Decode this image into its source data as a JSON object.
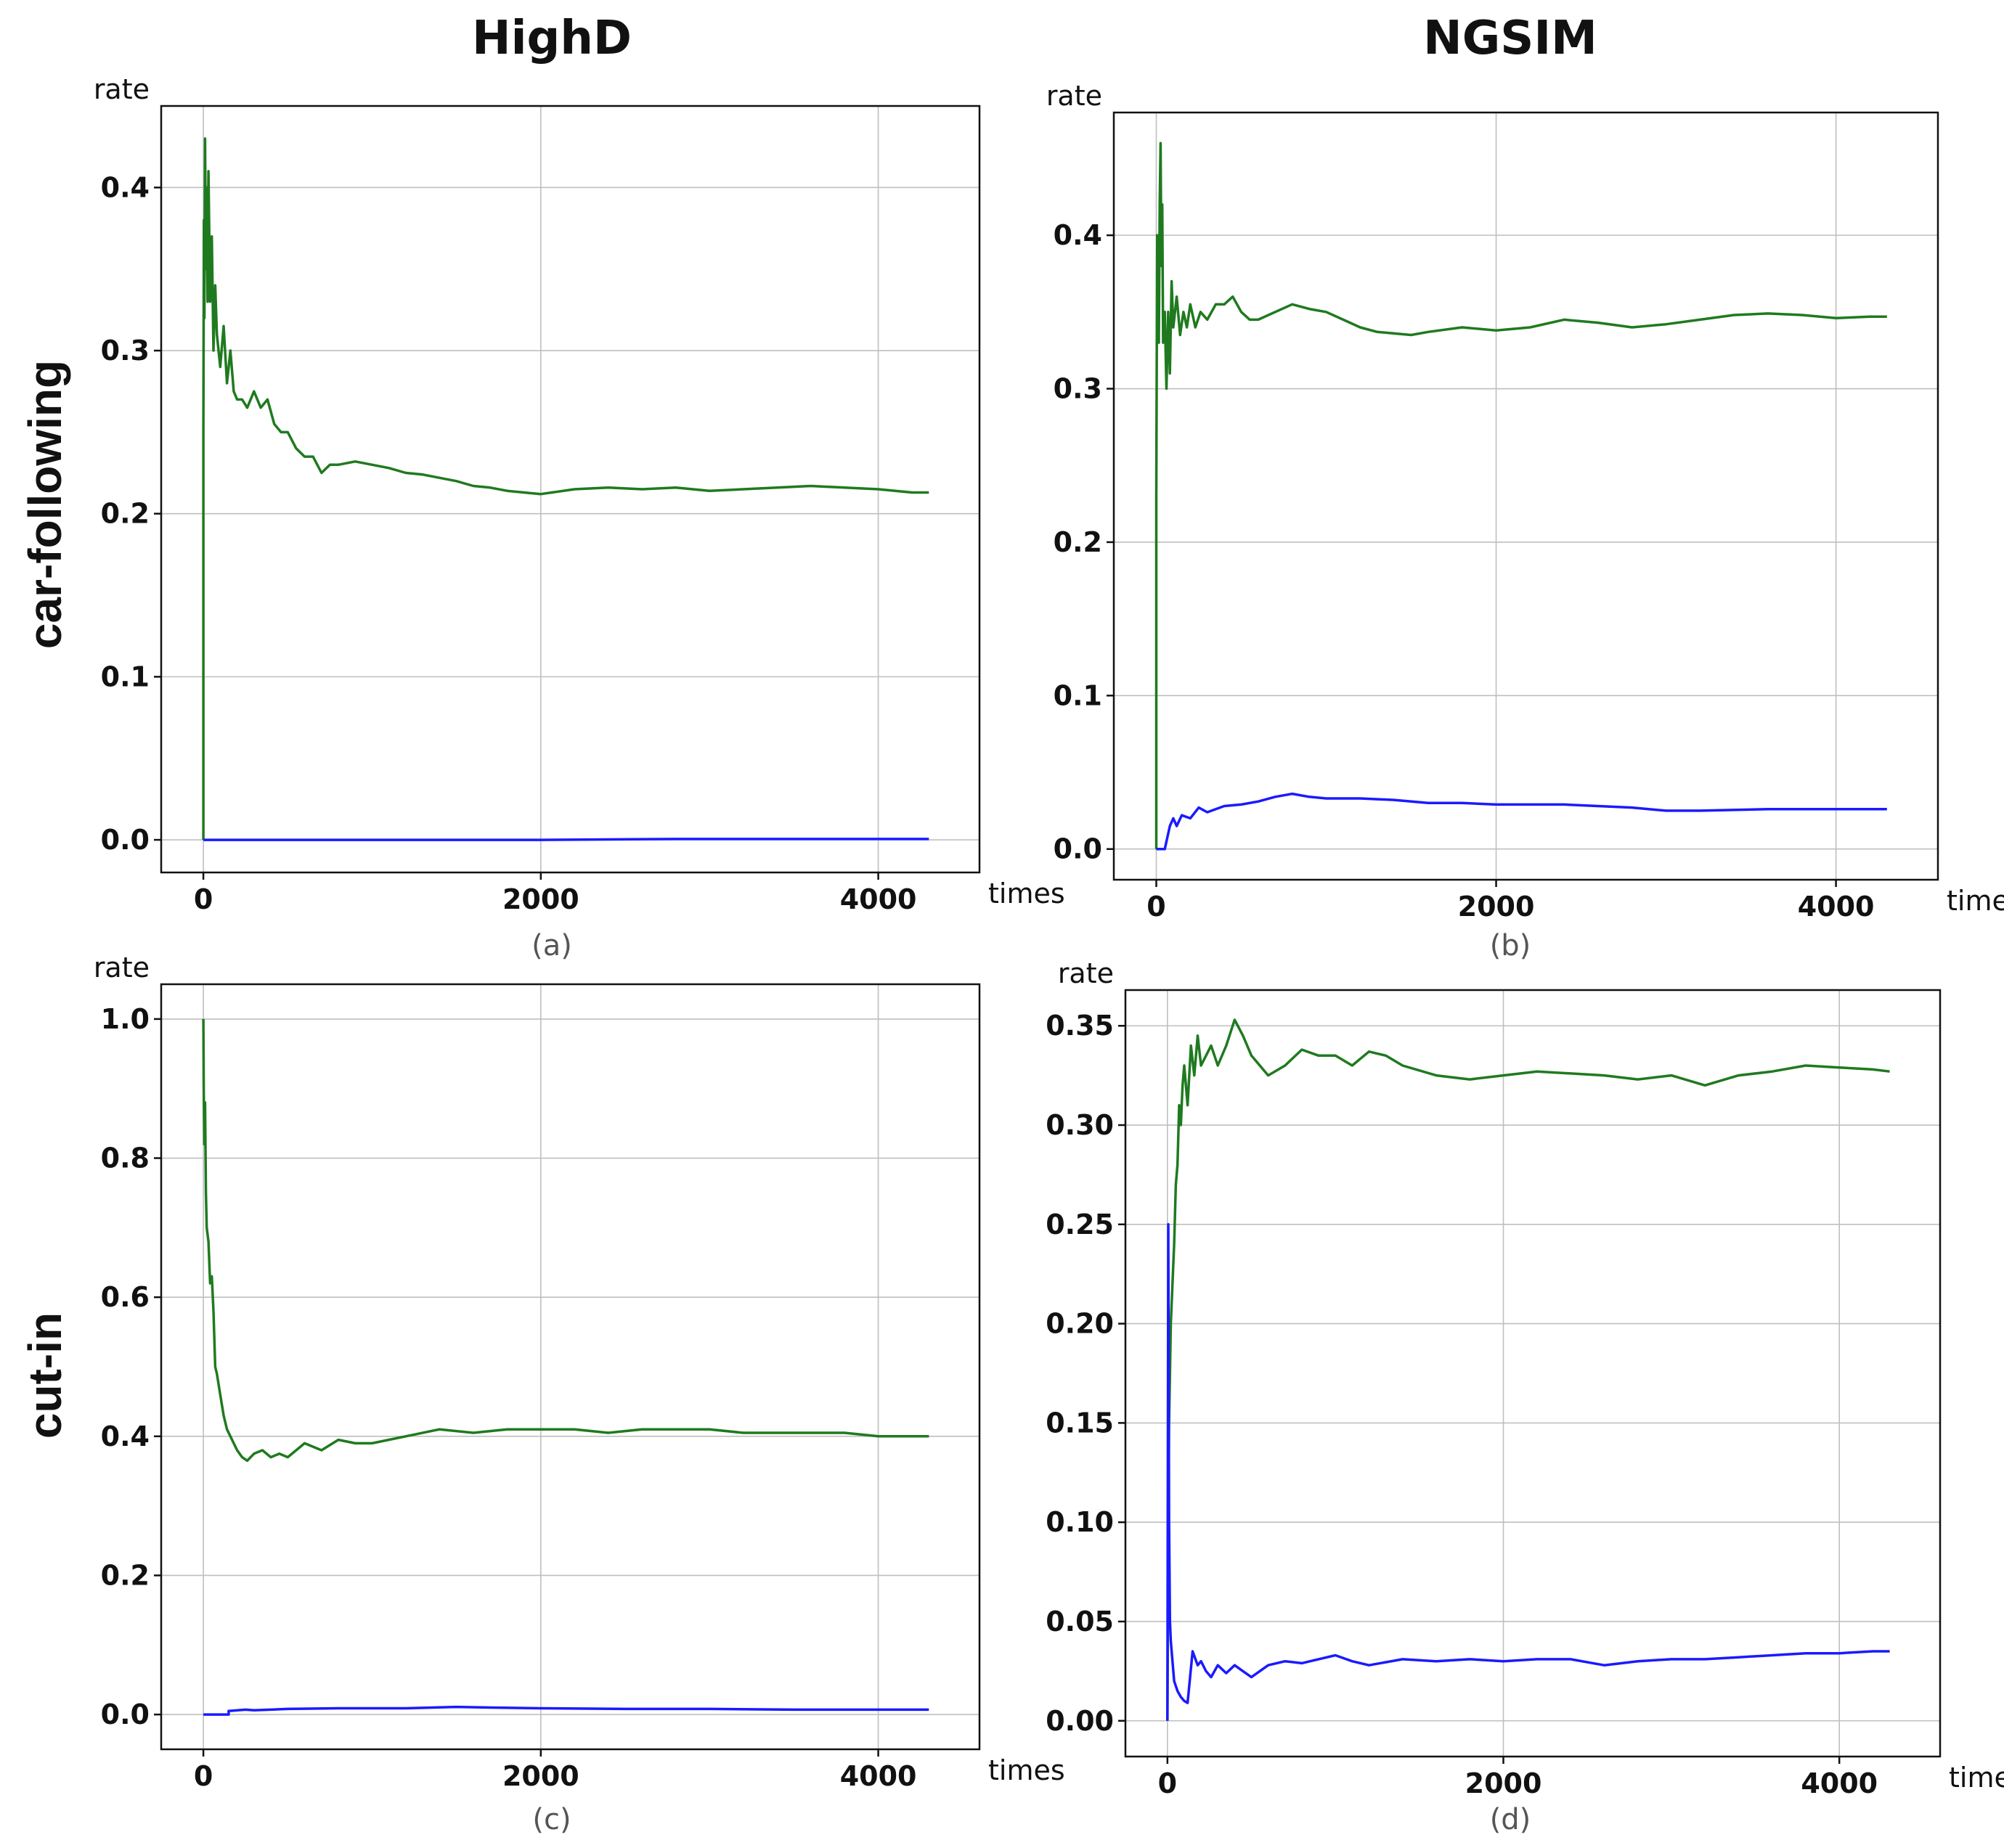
{
  "column_titles": [
    "HighD",
    "NGSIM"
  ],
  "row_titles": [
    "car-following",
    "cut-in"
  ],
  "colors": {
    "green_series": "#1f7a1f",
    "blue_series": "#1a1aff"
  },
  "chart_data": [
    {
      "id": "a",
      "type": "line",
      "caption": "(a)",
      "xlabel": "times",
      "ylabel": "rate",
      "xlim": [
        -250,
        4600
      ],
      "ylim": [
        -0.02,
        0.45
      ],
      "xticks": [
        0,
        2000,
        4000
      ],
      "xtick_labels": [
        "0",
        "2000",
        "4000"
      ],
      "yticks": [
        0.0,
        0.1,
        0.2,
        0.3,
        0.4
      ],
      "ytick_labels": [
        "0.0",
        "0.1",
        "0.2",
        "0.3",
        "0.4"
      ],
      "grid": true,
      "series": [
        {
          "name": "green",
          "color": "#1f7a1f",
          "x": [
            0,
            0,
            3,
            6,
            10,
            15,
            20,
            25,
            30,
            40,
            50,
            60,
            70,
            80,
            100,
            120,
            140,
            160,
            180,
            200,
            230,
            260,
            300,
            340,
            380,
            420,
            460,
            500,
            550,
            600,
            650,
            700,
            750,
            800,
            900,
            1000,
            1100,
            1200,
            1300,
            1400,
            1500,
            1600,
            1700,
            1800,
            1900,
            2000,
            2200,
            2400,
            2600,
            2800,
            3000,
            3200,
            3400,
            3600,
            3800,
            4000,
            4200,
            4300
          ],
          "y": [
            0.0,
            0.25,
            0.38,
            0.32,
            0.43,
            0.35,
            0.4,
            0.33,
            0.41,
            0.33,
            0.37,
            0.3,
            0.34,
            0.31,
            0.29,
            0.315,
            0.28,
            0.3,
            0.275,
            0.27,
            0.27,
            0.265,
            0.275,
            0.265,
            0.27,
            0.255,
            0.25,
            0.25,
            0.24,
            0.235,
            0.235,
            0.225,
            0.23,
            0.23,
            0.232,
            0.23,
            0.228,
            0.225,
            0.224,
            0.222,
            0.22,
            0.217,
            0.216,
            0.214,
            0.213,
            0.212,
            0.215,
            0.216,
            0.215,
            0.216,
            0.214,
            0.215,
            0.216,
            0.217,
            0.216,
            0.215,
            0.213,
            0.213
          ]
        },
        {
          "name": "blue",
          "color": "#1a1aff",
          "x": [
            0,
            500,
            1000,
            2000,
            2800,
            3500,
            4300
          ],
          "y": [
            0.0,
            0.0,
            0.0,
            0.0,
            0.0005,
            0.0005,
            0.0005
          ]
        }
      ]
    },
    {
      "id": "b",
      "type": "line",
      "caption": "(b)",
      "xlabel": "times",
      "ylabel": "rate",
      "xlim": [
        -250,
        4600
      ],
      "ylim": [
        -0.02,
        0.48
      ],
      "xticks": [
        0,
        2000,
        4000
      ],
      "xtick_labels": [
        "0",
        "2000",
        "4000"
      ],
      "yticks": [
        0.0,
        0.1,
        0.2,
        0.3,
        0.4
      ],
      "ytick_labels": [
        "0.0",
        "0.1",
        "0.2",
        "0.3",
        "0.4"
      ],
      "grid": true,
      "series": [
        {
          "name": "green",
          "color": "#1f7a1f",
          "x": [
            0,
            0,
            5,
            10,
            15,
            20,
            25,
            30,
            35,
            40,
            50,
            60,
            70,
            80,
            90,
            100,
            120,
            140,
            160,
            180,
            200,
            230,
            260,
            300,
            350,
            400,
            450,
            500,
            550,
            600,
            700,
            800,
            900,
            1000,
            1100,
            1200,
            1300,
            1400,
            1500,
            1600,
            1800,
            2000,
            2200,
            2400,
            2600,
            2800,
            3000,
            3200,
            3400,
            3600,
            3800,
            4000,
            4200,
            4300
          ],
          "y": [
            0.0,
            0.23,
            0.4,
            0.38,
            0.33,
            0.42,
            0.46,
            0.38,
            0.42,
            0.33,
            0.35,
            0.3,
            0.35,
            0.31,
            0.37,
            0.34,
            0.36,
            0.335,
            0.35,
            0.34,
            0.355,
            0.34,
            0.35,
            0.345,
            0.355,
            0.355,
            0.36,
            0.35,
            0.345,
            0.345,
            0.35,
            0.355,
            0.352,
            0.35,
            0.345,
            0.34,
            0.337,
            0.336,
            0.335,
            0.337,
            0.34,
            0.338,
            0.34,
            0.345,
            0.343,
            0.34,
            0.342,
            0.345,
            0.348,
            0.349,
            0.348,
            0.346,
            0.347,
            0.347
          ]
        },
        {
          "name": "blue",
          "color": "#1a1aff",
          "x": [
            0,
            0,
            50,
            80,
            100,
            120,
            150,
            200,
            250,
            300,
            400,
            500,
            600,
            700,
            800,
            900,
            1000,
            1200,
            1400,
            1600,
            1800,
            2000,
            2400,
            2800,
            3000,
            3200,
            3600,
            4000,
            4300
          ],
          "y": [
            0.0,
            0.0,
            0.0,
            0.015,
            0.02,
            0.015,
            0.022,
            0.02,
            0.027,
            0.024,
            0.028,
            0.029,
            0.031,
            0.034,
            0.036,
            0.034,
            0.033,
            0.033,
            0.032,
            0.03,
            0.03,
            0.029,
            0.029,
            0.027,
            0.025,
            0.025,
            0.026,
            0.026,
            0.026
          ]
        }
      ]
    },
    {
      "id": "c",
      "type": "line",
      "caption": "(c)",
      "xlabel": "times",
      "ylabel": "rate",
      "xlim": [
        -250,
        4600
      ],
      "ylim": [
        -0.05,
        1.05
      ],
      "xticks": [
        0,
        2000,
        4000
      ],
      "xtick_labels": [
        "0",
        "2000",
        "4000"
      ],
      "yticks": [
        0.0,
        0.2,
        0.4,
        0.6,
        0.8,
        1.0
      ],
      "ytick_labels": [
        "0.0",
        "0.2",
        "0.4",
        "0.6",
        "0.8",
        "1.0"
      ],
      "grid": true,
      "series": [
        {
          "name": "green",
          "color": "#1f7a1f",
          "x": [
            0,
            2,
            5,
            10,
            15,
            20,
            30,
            40,
            50,
            60,
            70,
            80,
            100,
            120,
            140,
            160,
            180,
            200,
            230,
            260,
            300,
            350,
            400,
            450,
            500,
            600,
            700,
            800,
            900,
            1000,
            1200,
            1400,
            1600,
            1800,
            2000,
            2200,
            2400,
            2600,
            2800,
            3000,
            3200,
            3400,
            3600,
            3800,
            4000,
            4200,
            4300
          ],
          "y": [
            1.0,
            0.9,
            0.82,
            0.88,
            0.75,
            0.7,
            0.68,
            0.62,
            0.63,
            0.58,
            0.5,
            0.49,
            0.46,
            0.43,
            0.41,
            0.4,
            0.39,
            0.38,
            0.37,
            0.365,
            0.375,
            0.38,
            0.37,
            0.375,
            0.37,
            0.39,
            0.38,
            0.395,
            0.39,
            0.39,
            0.4,
            0.41,
            0.405,
            0.41,
            0.41,
            0.41,
            0.405,
            0.41,
            0.41,
            0.41,
            0.405,
            0.405,
            0.405,
            0.405,
            0.4,
            0.4,
            0.4
          ]
        },
        {
          "name": "blue",
          "color": "#1a1aff",
          "x": [
            0,
            150,
            150,
            250,
            300,
            500,
            800,
            1200,
            1500,
            1700,
            2000,
            2500,
            3000,
            3500,
            4000,
            4300
          ],
          "y": [
            0.0,
            0.0,
            0.005,
            0.007,
            0.006,
            0.008,
            0.009,
            0.009,
            0.011,
            0.01,
            0.009,
            0.008,
            0.008,
            0.007,
            0.007,
            0.007
          ]
        }
      ]
    },
    {
      "id": "d",
      "type": "line",
      "caption": "(d)",
      "xlabel": "times",
      "ylabel": "rate",
      "xlim": [
        -250,
        4600
      ],
      "ylim": [
        -0.018,
        0.368
      ],
      "xticks": [
        0,
        2000,
        4000
      ],
      "xtick_labels": [
        "0",
        "2000",
        "4000"
      ],
      "yticks": [
        0.0,
        0.05,
        0.1,
        0.15,
        0.2,
        0.25,
        0.3,
        0.35
      ],
      "ytick_labels": [
        "0.00",
        "0.05",
        "0.10",
        "0.15",
        "0.20",
        "0.25",
        "0.30",
        "0.35"
      ],
      "grid": true,
      "series": [
        {
          "name": "green",
          "color": "#1f7a1f",
          "x": [
            0,
            5,
            10,
            20,
            30,
            40,
            50,
            60,
            70,
            80,
            90,
            100,
            120,
            140,
            160,
            180,
            200,
            230,
            260,
            300,
            350,
            400,
            450,
            500,
            550,
            600,
            700,
            800,
            900,
            1000,
            1100,
            1200,
            1300,
            1400,
            1600,
            1800,
            2000,
            2200,
            2400,
            2600,
            2800,
            3000,
            3200,
            3400,
            3600,
            3800,
            4000,
            4200,
            4300
          ],
          "y": [
            0.0,
            0.1,
            0.15,
            0.2,
            0.22,
            0.24,
            0.27,
            0.28,
            0.31,
            0.3,
            0.32,
            0.33,
            0.31,
            0.34,
            0.325,
            0.345,
            0.33,
            0.335,
            0.34,
            0.33,
            0.34,
            0.353,
            0.345,
            0.335,
            0.33,
            0.325,
            0.33,
            0.338,
            0.335,
            0.335,
            0.33,
            0.337,
            0.335,
            0.33,
            0.325,
            0.323,
            0.325,
            0.327,
            0.326,
            0.325,
            0.323,
            0.325,
            0.32,
            0.325,
            0.327,
            0.33,
            0.329,
            0.328,
            0.327
          ]
        },
        {
          "name": "blue",
          "color": "#1a1aff",
          "x": [
            0,
            0,
            5,
            10,
            15,
            20,
            30,
            40,
            60,
            80,
            100,
            120,
            150,
            180,
            200,
            230,
            260,
            300,
            350,
            400,
            450,
            500,
            600,
            700,
            800,
            900,
            1000,
            1100,
            1200,
            1400,
            1600,
            1800,
            2000,
            2200,
            2400,
            2600,
            2800,
            3000,
            3200,
            3400,
            3600,
            3800,
            4000,
            4200,
            4300
          ],
          "y": [
            0.0,
            0.0,
            0.25,
            0.1,
            0.05,
            0.04,
            0.03,
            0.02,
            0.015,
            0.012,
            0.01,
            0.009,
            0.035,
            0.028,
            0.03,
            0.025,
            0.022,
            0.028,
            0.024,
            0.028,
            0.025,
            0.022,
            0.028,
            0.03,
            0.029,
            0.031,
            0.033,
            0.03,
            0.028,
            0.031,
            0.03,
            0.031,
            0.03,
            0.031,
            0.031,
            0.028,
            0.03,
            0.031,
            0.031,
            0.032,
            0.033,
            0.034,
            0.034,
            0.035,
            0.035
          ]
        }
      ]
    }
  ]
}
